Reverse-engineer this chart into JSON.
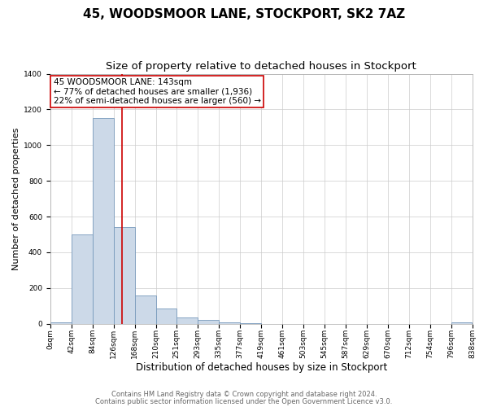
{
  "title": "45, WOODSMOOR LANE, STOCKPORT, SK2 7AZ",
  "subtitle": "Size of property relative to detached houses in Stockport",
  "xlabel": "Distribution of detached houses by size in Stockport",
  "ylabel": "Number of detached properties",
  "bar_values": [
    10,
    500,
    1150,
    540,
    160,
    85,
    35,
    20,
    10,
    5,
    0,
    0,
    0,
    0,
    0,
    0,
    0,
    0,
    0,
    10
  ],
  "bin_edges": [
    0,
    42,
    84,
    126,
    168,
    210,
    251,
    293,
    335,
    377,
    419,
    461,
    503,
    545,
    587,
    629,
    670,
    712,
    754,
    796,
    838
  ],
  "tick_labels": [
    "0sqm",
    "42sqm",
    "84sqm",
    "126sqm",
    "168sqm",
    "210sqm",
    "251sqm",
    "293sqm",
    "335sqm",
    "377sqm",
    "419sqm",
    "461sqm",
    "503sqm",
    "545sqm",
    "587sqm",
    "629sqm",
    "670sqm",
    "712sqm",
    "754sqm",
    "796sqm",
    "838sqm"
  ],
  "bar_color": "#ccd9e8",
  "bar_edge_color": "#7799bb",
  "vline_x": 143,
  "vline_color": "#cc0000",
  "annotation_line1": "45 WOODSMOOR LANE: 143sqm",
  "annotation_line2": "← 77% of detached houses are smaller (1,936)",
  "annotation_line3": "22% of semi-detached houses are larger (560) →",
  "annotation_box_color": "#ffffff",
  "annotation_box_edge_color": "#cc0000",
  "ylim": [
    0,
    1400
  ],
  "yticks": [
    0,
    200,
    400,
    600,
    800,
    1000,
    1200,
    1400
  ],
  "footer_line1": "Contains HM Land Registry data © Crown copyright and database right 2024.",
  "footer_line2": "Contains public sector information licensed under the Open Government Licence v3.0.",
  "background_color": "#ffffff",
  "plot_background_color": "#ffffff",
  "title_fontsize": 11,
  "subtitle_fontsize": 9.5,
  "xlabel_fontsize": 8.5,
  "ylabel_fontsize": 8,
  "tick_fontsize": 6.5,
  "footer_fontsize": 6,
  "annotation_fontsize": 7.5
}
